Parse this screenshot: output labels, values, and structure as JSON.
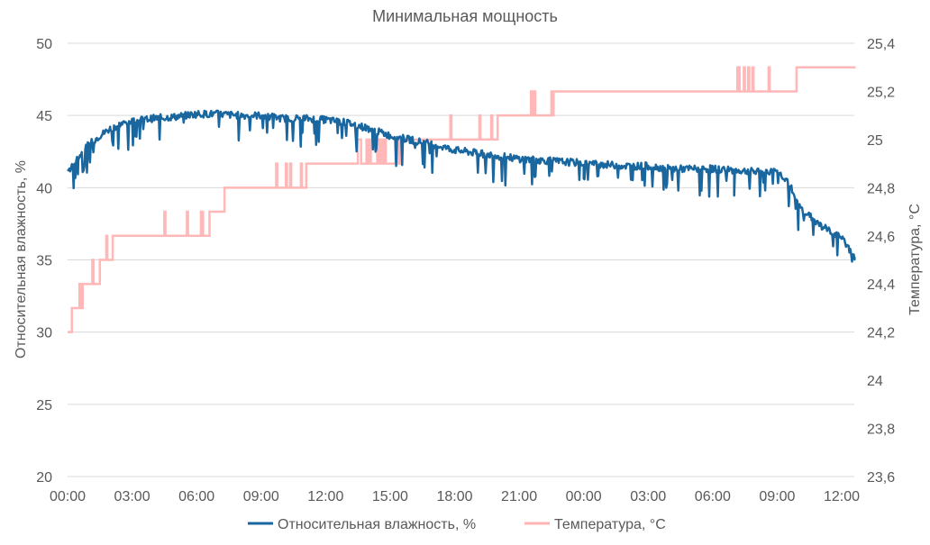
{
  "chart_data": {
    "type": "line",
    "title": "Минимальная мощность",
    "ylabel": "Относительная влажность, %",
    "y2label": "Температура, °C",
    "ylim": [
      20,
      50
    ],
    "y2lim": [
      23.6,
      25.4
    ],
    "yticks": [
      "20",
      "25",
      "30",
      "35",
      "40",
      "45",
      "50"
    ],
    "y2ticks": [
      "23,6",
      "23,8",
      "24",
      "24,2",
      "24,4",
      "24,6",
      "24,8",
      "25",
      "25,2",
      "25,4"
    ],
    "xticks": [
      "00:00",
      "03:00",
      "06:00",
      "09:00",
      "12:00",
      "15:00",
      "18:00",
      "21:00",
      "00:00",
      "03:00",
      "06:00",
      "09:00",
      "12:00"
    ],
    "xlim_hours": [
      0,
      36.6
    ],
    "grid": true,
    "legend_position": "bottom",
    "series": [
      {
        "name": "Относительная влажность, %",
        "axis": "left",
        "color": "#1a67a0",
        "x_hours": [
          0,
          0.5,
          1,
          1.5,
          2,
          2.5,
          3,
          4,
          5,
          6,
          7,
          8,
          9,
          10,
          11,
          12,
          13,
          14,
          15,
          16,
          17,
          18,
          19,
          20,
          21,
          22,
          23,
          24,
          25,
          26,
          27,
          28,
          29,
          30,
          31,
          32,
          33,
          33.5,
          34,
          35,
          36,
          36.6
        ],
        "values": [
          41.1,
          42.1,
          43,
          43.6,
          44.1,
          44.4,
          44.6,
          44.8,
          44.9,
          45.1,
          45.1,
          45,
          45,
          44.8,
          44.8,
          44.7,
          44.5,
          44.1,
          43.6,
          43.3,
          43,
          42.6,
          42.4,
          42.2,
          42,
          41.9,
          41.8,
          41.7,
          41.6,
          41.5,
          41.5,
          41.3,
          41.3,
          41.3,
          41.2,
          41.1,
          41.1,
          40.5,
          38.7,
          37.4,
          36.5,
          35.2
        ]
      },
      {
        "name": "Температура, °C",
        "axis": "right",
        "color": "#ffb3b3",
        "step_start_hours": [
          0,
          0.2,
          0.7,
          1.5,
          2.1,
          6.6,
          7.3,
          11.1,
          15.5,
          20.0,
          22.6,
          33.9
        ],
        "values": [
          24.2,
          24.3,
          24.4,
          24.5,
          24.6,
          24.7,
          24.8,
          24.9,
          25.0,
          25.1,
          25.2,
          25.3
        ]
      }
    ]
  }
}
